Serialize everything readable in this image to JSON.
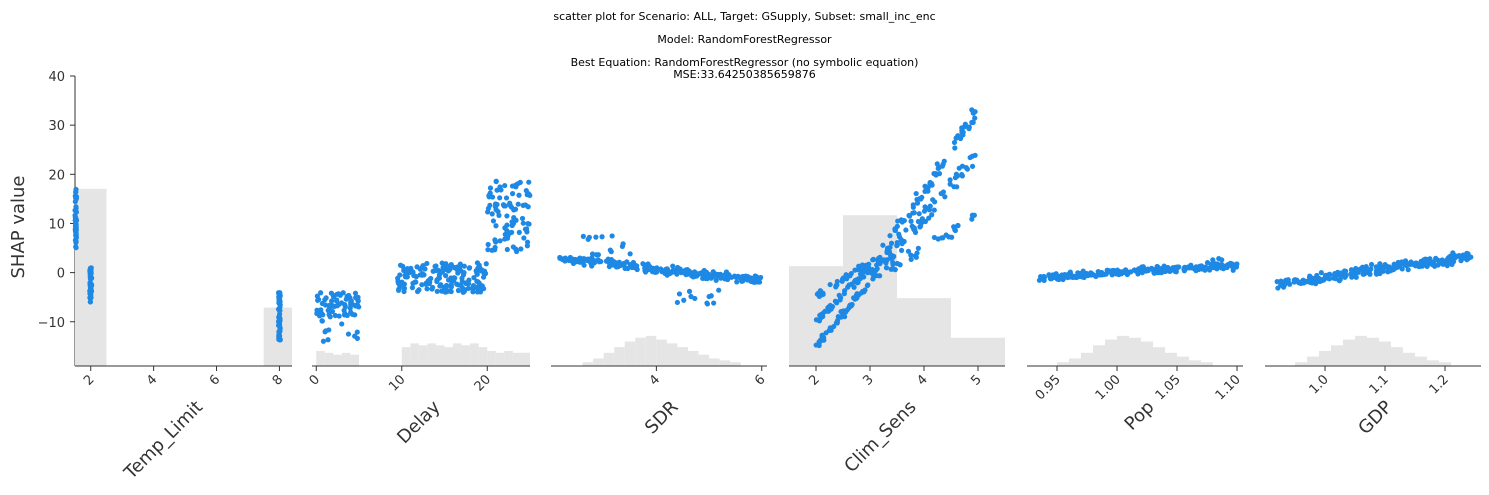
{
  "header": {
    "line1": "scatter plot for Scenario: ALL, Target: GSupply, Subset: small_inc_enc",
    "line2": "Model: RandomForestRegressor",
    "line3": "Best Equation: RandomForestRegressor (no symbolic equation)",
    "line4": "MSE:33.64250385659876"
  },
  "colors": {
    "points": "#1e88e5",
    "histogram": "#e5e5e5",
    "axis": "#333333"
  },
  "chart_data": {
    "type": "scatter",
    "ylabel": "SHAP value",
    "ylim": [
      -19,
      40
    ],
    "yticks": [
      -10,
      0,
      10,
      20,
      30,
      40
    ],
    "ytick_labels": [
      "−10",
      "0",
      "10",
      "20",
      "30",
      "40"
    ],
    "grid": false,
    "panels": [
      {
        "xlabel": "Temp_Limit",
        "xlim": [
          1.5,
          8.4
        ],
        "xticks": [
          2,
          4,
          6,
          8
        ],
        "xtick_labels": [
          "2",
          "4",
          "6",
          "8"
        ],
        "hist": [
          [
            1.5,
            2.5,
            0.94
          ],
          [
            2.5,
            7.5,
            0
          ],
          [
            7.5,
            8.5,
            0.31
          ]
        ],
        "clusters": [
          {
            "kind": "uniform",
            "x": [
              1.5,
              1.55
            ],
            "y": [
              5,
              17
            ],
            "n": 45
          },
          {
            "kind": "uniform",
            "x": [
              1.97,
              2.03
            ],
            "y": [
              -6,
              1
            ],
            "n": 50
          },
          {
            "kind": "uniform",
            "x": [
              7.97,
              8.03
            ],
            "y": [
              -14,
              -4
            ],
            "n": 55
          }
        ]
      },
      {
        "xlabel": "Delay",
        "xlim": [
          -0.5,
          25
        ],
        "xticks": [
          0,
          10,
          20
        ],
        "xtick_labels": [
          "0",
          "10",
          "20"
        ],
        "hist": [
          [
            0,
            1,
            0.08
          ],
          [
            1,
            2,
            0.07
          ],
          [
            2,
            3,
            0.06
          ],
          [
            3,
            4,
            0.07
          ],
          [
            4,
            5,
            0.06
          ],
          [
            10,
            11,
            0.1
          ],
          [
            11,
            12,
            0.12
          ],
          [
            12,
            13,
            0.11
          ],
          [
            13,
            14,
            0.12
          ],
          [
            14,
            15,
            0.11
          ],
          [
            15,
            16,
            0.1
          ],
          [
            16,
            17,
            0.12
          ],
          [
            17,
            18,
            0.11
          ],
          [
            18,
            19,
            0.12
          ],
          [
            19,
            20,
            0.1
          ],
          [
            20,
            21,
            0.08
          ],
          [
            21,
            22,
            0.07
          ],
          [
            22,
            23,
            0.08
          ],
          [
            23,
            24,
            0.07
          ],
          [
            24,
            25,
            0.07
          ]
        ],
        "clusters": [
          {
            "kind": "uniform",
            "x": [
              0,
              5
            ],
            "y": [
              -9,
              -4
            ],
            "n": 70
          },
          {
            "kind": "uniform",
            "x": [
              0,
              5
            ],
            "y": [
              -14,
              -9
            ],
            "n": 12
          },
          {
            "kind": "uniform",
            "x": [
              9.5,
              20
            ],
            "y": [
              -4,
              2
            ],
            "n": 170
          },
          {
            "kind": "uniform",
            "x": [
              20,
              25
            ],
            "y": [
              4,
              19
            ],
            "n": 90
          }
        ]
      },
      {
        "xlabel": "SDR",
        "xlim": [
          2,
          6.1
        ],
        "xticks": [
          4,
          6
        ],
        "xtick_labels": [
          "4",
          "6"
        ],
        "hist": [
          [
            2.6,
            2.8,
            0.02
          ],
          [
            2.8,
            3.0,
            0.04
          ],
          [
            3.0,
            3.2,
            0.07
          ],
          [
            3.2,
            3.4,
            0.1
          ],
          [
            3.4,
            3.6,
            0.13
          ],
          [
            3.6,
            3.8,
            0.15
          ],
          [
            3.8,
            4.0,
            0.16
          ],
          [
            4.0,
            4.2,
            0.14
          ],
          [
            4.2,
            4.4,
            0.12
          ],
          [
            4.4,
            4.6,
            0.1
          ],
          [
            4.6,
            4.8,
            0.08
          ],
          [
            4.8,
            5.0,
            0.06
          ],
          [
            5.0,
            5.2,
            0.04
          ],
          [
            5.2,
            5.4,
            0.03
          ],
          [
            5.4,
            5.6,
            0.02
          ]
        ],
        "clusters": [
          {
            "kind": "band",
            "x": [
              2.1,
              6.0
            ],
            "y0": 3,
            "y1": -1.6,
            "spread": 1.2,
            "n": 250
          },
          {
            "kind": "uniform",
            "x": [
              2.6,
              3.6
            ],
            "y": [
              3,
              10
            ],
            "n": 14
          },
          {
            "kind": "uniform",
            "x": [
              4.3,
              5.2
            ],
            "y": [
              -6.5,
              -3
            ],
            "n": 12
          }
        ]
      },
      {
        "xlabel": "Clim_Sens",
        "xlim": [
          1.5,
          5.5
        ],
        "xticks": [
          2,
          3,
          4,
          5
        ],
        "xtick_labels": [
          "2",
          "3",
          "4",
          "5"
        ],
        "hist": [
          [
            1.5,
            2.5,
            0.53
          ],
          [
            2.5,
            3.5,
            0.8
          ],
          [
            3.5,
            4.5,
            0.36
          ],
          [
            4.5,
            5.5,
            0.15
          ]
        ],
        "clusters": [
          {
            "kind": "band",
            "x": [
              2.0,
              3.0
            ],
            "y0": -15,
            "y1": -2,
            "spread": 1.2,
            "n": 50
          },
          {
            "kind": "band",
            "x": [
              2.0,
              3.0
            ],
            "y0": -10,
            "y1": 1,
            "spread": 1.2,
            "n": 50
          },
          {
            "kind": "band",
            "x": [
              2.0,
              3.0
            ],
            "y0": -5,
            "y1": 2,
            "spread": 1.0,
            "n": 40
          },
          {
            "kind": "band",
            "x": [
              3.0,
              5.0
            ],
            "y0": 0,
            "y1": 33,
            "spread": 3,
            "n": 80
          },
          {
            "kind": "band",
            "x": [
              3.0,
              5.0
            ],
            "y0": -1,
            "y1": 24,
            "spread": 3,
            "n": 80
          },
          {
            "kind": "band",
            "x": [
              3.3,
              5.0
            ],
            "y0": 0,
            "y1": 12,
            "spread": 2,
            "n": 30
          }
        ]
      },
      {
        "xlabel": "Pop",
        "xlim": [
          0.925,
          1.105
        ],
        "xticks": [
          0.95,
          1.0,
          1.05,
          1.1
        ],
        "xtick_labels": [
          "0.95",
          "1.00",
          "1.05",
          "1.10"
        ],
        "hist": [
          [
            0.95,
            0.96,
            0.02
          ],
          [
            0.96,
            0.97,
            0.04
          ],
          [
            0.97,
            0.98,
            0.07
          ],
          [
            0.98,
            0.99,
            0.11
          ],
          [
            0.99,
            1.0,
            0.14
          ],
          [
            1.0,
            1.01,
            0.16
          ],
          [
            1.01,
            1.02,
            0.15
          ],
          [
            1.02,
            1.03,
            0.13
          ],
          [
            1.03,
            1.04,
            0.1
          ],
          [
            1.04,
            1.05,
            0.07
          ],
          [
            1.05,
            1.06,
            0.05
          ],
          [
            1.06,
            1.07,
            0.03
          ],
          [
            1.07,
            1.08,
            0.02
          ]
        ],
        "clusters": [
          {
            "kind": "band",
            "x": [
              0.935,
              1.1
            ],
            "y0": -1,
            "y1": 1.5,
            "spread": 1.0,
            "n": 230
          },
          {
            "kind": "uniform",
            "x": [
              1.075,
              1.1
            ],
            "y": [
              0,
              4
            ],
            "n": 10
          }
        ]
      },
      {
        "xlabel": "GDP",
        "xlim": [
          0.9,
          1.26
        ],
        "xticks": [
          1.0,
          1.1,
          1.2
        ],
        "xtick_labels": [
          "1.0",
          "1.1",
          "1.2"
        ],
        "hist": [
          [
            0.95,
            0.97,
            0.02
          ],
          [
            0.97,
            0.99,
            0.05
          ],
          [
            0.99,
            1.01,
            0.08
          ],
          [
            1.01,
            1.03,
            0.11
          ],
          [
            1.03,
            1.05,
            0.14
          ],
          [
            1.05,
            1.07,
            0.16
          ],
          [
            1.07,
            1.09,
            0.15
          ],
          [
            1.09,
            1.11,
            0.13
          ],
          [
            1.11,
            1.13,
            0.1
          ],
          [
            1.13,
            1.15,
            0.07
          ],
          [
            1.15,
            1.17,
            0.05
          ],
          [
            1.17,
            1.19,
            0.03
          ],
          [
            1.19,
            1.21,
            0.02
          ]
        ],
        "clusters": [
          {
            "kind": "band",
            "x": [
              0.92,
              1.25
            ],
            "y0": -2.5,
            "y1": 3.5,
            "spread": 1.6,
            "n": 250
          }
        ]
      }
    ]
  }
}
